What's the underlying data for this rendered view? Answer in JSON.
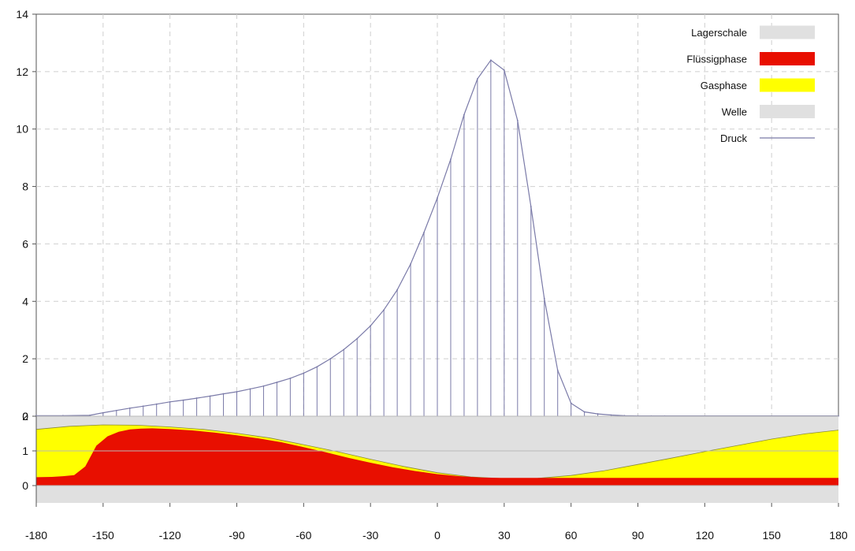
{
  "chart_data": {
    "type": "line",
    "x_ticks": [
      "-180",
      "-150",
      "-120",
      "-90",
      "-60",
      "-30",
      "0",
      "30",
      "60",
      "90",
      "120",
      "150",
      "180"
    ],
    "xlim": [
      -180,
      180
    ],
    "top_panel": {
      "ylim": [
        0,
        14
      ],
      "y_ticks": [
        "0",
        "2",
        "4",
        "6",
        "8",
        "10",
        "12",
        "14"
      ],
      "grid": true,
      "series": [
        {
          "name": "Druck",
          "color": "#7a7aa8",
          "x": [
            -180,
            -168,
            -156,
            -150,
            -144,
            -138,
            -132,
            -126,
            -120,
            -114,
            -108,
            -102,
            -96,
            -90,
            -84,
            -78,
            -72,
            -66,
            -60,
            -54,
            -48,
            -42,
            -36,
            -30,
            -24,
            -18,
            -12,
            -6,
            0,
            6,
            12,
            18,
            24,
            30,
            36,
            42,
            48,
            54,
            60,
            66,
            72,
            78,
            84,
            90,
            96,
            102,
            180
          ],
          "y": [
            0.02,
            0.02,
            0.03,
            0.12,
            0.2,
            0.28,
            0.35,
            0.42,
            0.5,
            0.56,
            0.63,
            0.7,
            0.78,
            0.85,
            0.95,
            1.05,
            1.18,
            1.32,
            1.5,
            1.72,
            2.0,
            2.32,
            2.7,
            3.15,
            3.7,
            4.4,
            5.3,
            6.4,
            7.6,
            8.95,
            10.5,
            11.75,
            12.4,
            12.05,
            10.3,
            7.3,
            4.1,
            1.6,
            0.45,
            0.15,
            0.08,
            0.04,
            0.02,
            0.01,
            0.01,
            0.01,
            0.01
          ]
        }
      ]
    },
    "bottom_panel": {
      "ylim": [
        -0.5,
        2
      ],
      "y_ticks": [
        "0",
        "1",
        "2"
      ],
      "series": [
        {
          "name": "Lagerschale",
          "color": "#e0e0e0",
          "x": [
            -180,
            180
          ],
          "y_lower": [
            -0.5,
            -0.5
          ],
          "y_upper": [
            2,
            2
          ]
        },
        {
          "name": "Gasphase",
          "color": "#ffff00",
          "x": [
            -180,
            -165,
            -150,
            -135,
            -120,
            -105,
            -90,
            -75,
            -60,
            -45,
            -30,
            -15,
            0,
            15,
            30,
            45,
            60,
            75,
            90,
            105,
            120,
            135,
            150,
            165,
            180
          ],
          "y": [
            1.62,
            1.71,
            1.75,
            1.74,
            1.69,
            1.62,
            1.51,
            1.37,
            1.18,
            0.98,
            0.76,
            0.55,
            0.37,
            0.25,
            0.2,
            0.21,
            0.29,
            0.43,
            0.61,
            0.79,
            0.98,
            1.16,
            1.34,
            1.49,
            1.6
          ]
        },
        {
          "name": "Flüssigphase",
          "color": "#e80f00",
          "x": [
            -180,
            -173,
            -168,
            -163,
            -158,
            -153,
            -148,
            -143,
            -138,
            -133,
            -128,
            -120,
            -110,
            -100,
            -90,
            -80,
            -70,
            -60,
            -50,
            -40,
            -30,
            -20,
            -10,
            0,
            10,
            20,
            30,
            40,
            180
          ],
          "y": [
            0.24,
            0.25,
            0.27,
            0.3,
            0.55,
            1.15,
            1.42,
            1.55,
            1.62,
            1.64,
            1.65,
            1.63,
            1.59,
            1.53,
            1.45,
            1.36,
            1.25,
            1.11,
            0.96,
            0.8,
            0.66,
            0.53,
            0.42,
            0.33,
            0.27,
            0.23,
            0.22,
            0.22,
            0.22
          ]
        },
        {
          "name": "Welle",
          "color": "#e0e0e0",
          "x": [
            -180,
            180
          ],
          "y_lower": [
            -0.5,
            -0.5
          ],
          "y_upper": [
            0,
            0
          ]
        }
      ]
    },
    "legend": {
      "placement": "top-right",
      "entries": [
        {
          "label": "Lagerschale",
          "kind": "box",
          "color": "#e0e0e0"
        },
        {
          "label": "Flüssigphase",
          "kind": "box",
          "color": "#e80f00"
        },
        {
          "label": "Gasphase",
          "kind": "box",
          "color": "#ffff00"
        },
        {
          "label": "Welle",
          "kind": "box",
          "color": "#e0e0e0"
        },
        {
          "label": "Druck",
          "kind": "line",
          "color": "#7a7aa8"
        }
      ]
    }
  }
}
